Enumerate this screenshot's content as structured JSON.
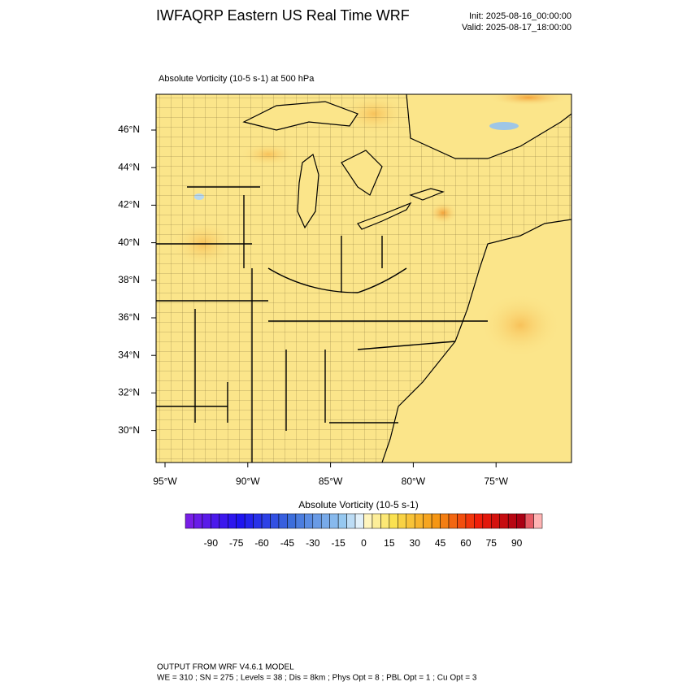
{
  "header": {
    "title": "IWFAQRP Eastern US Real Time WRF",
    "init": "Init: 2025-08-16_00:00:00",
    "valid": "Valid: 2025-08-17_18:00:00"
  },
  "map": {
    "subtitle": "Absolute Vorticity   (10-5 s-1)     at   500 hPa",
    "lat_labels": [
      "46°N",
      "44°N",
      "42°N",
      "40°N",
      "38°N",
      "36°N",
      "34°N",
      "32°N",
      "30°N"
    ],
    "lon_labels": [
      "95°W",
      "90°W",
      "85°W",
      "80°W",
      "75°W"
    ]
  },
  "colorbar": {
    "title": "Absolute Vorticity  (10-5 s-1)",
    "labels": [
      -90,
      -75,
      -60,
      -45,
      -30,
      -15,
      0,
      15,
      30,
      45,
      60,
      75,
      90
    ]
  },
  "footer": {
    "line1": "OUTPUT FROM WRF V4.6.1 MODEL",
    "line2": "WE = 310 ; SN = 275 ; Levels = 38 ; Dis = 8km ; Phys Opt = 8 ; PBL Opt = 1 ; Cu Opt = 3"
  }
}
